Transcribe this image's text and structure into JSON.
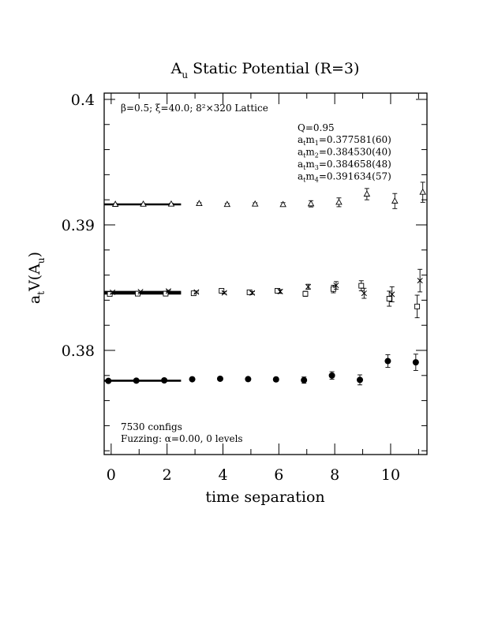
{
  "chart_data": {
    "type": "scatter",
    "title_main": "A",
    "title_sub": "u",
    "title_rest": " Static Potential (R=3)",
    "xlabel": "time separation",
    "ylabel_main": "a",
    "ylabel_sub1": "t",
    "ylabel_mid": "V(A",
    "ylabel_sub2": "u",
    "ylabel_end": ")",
    "xlim": [
      -0.25,
      11.3
    ],
    "ylim": [
      0.3717,
      0.4005
    ],
    "x_ticks": [
      0,
      2,
      4,
      6,
      8,
      10
    ],
    "x_tick_labels": [
      "0",
      "2",
      "4",
      "6",
      "8",
      "10"
    ],
    "y_ticks": [
      0.38,
      0.39,
      0.4
    ],
    "y_tick_labels": [
      "0.38",
      "0.39",
      "0.4"
    ],
    "grid": false,
    "header_annotation": "β=0.5; ξ=40.0; 8²×320 Lattice",
    "legend": {
      "position": "top-right",
      "q_line": "Q=0.95",
      "entries": [
        {
          "a": "a",
          "t": "t",
          "m": "m",
          "n": "1",
          "value": "=0.377581(60)"
        },
        {
          "a": "a",
          "t": "t",
          "m": "m",
          "n": "2",
          "value": "=0.384530(40)"
        },
        {
          "a": "a",
          "t": "t",
          "m": "m",
          "n": "3",
          "value": "=0.384658(48)"
        },
        {
          "a": "a",
          "t": "t",
          "m": "m",
          "n": "4",
          "value": "=0.391634(57)"
        }
      ]
    },
    "footer_annotation_1": "7530 configs",
    "footer_annotation_2": "Fuzzing: α=0.00, 0 levels",
    "fit_lines": [
      {
        "y": 0.377581,
        "x_start": -0.25,
        "x_end": 2.5
      },
      {
        "y": 0.38453,
        "x_start": -0.25,
        "x_end": 2.5
      },
      {
        "y": 0.384658,
        "x_start": -0.25,
        "x_end": 2.5
      },
      {
        "y": 0.391634,
        "x_start": -0.25,
        "x_end": 2.5
      }
    ],
    "series": [
      {
        "marker": "circle",
        "x": [
          -0.1,
          0.9,
          1.9,
          2.9,
          3.9,
          4.9,
          5.9,
          6.9,
          7.9,
          8.9,
          9.9,
          10.9
        ],
        "y": [
          0.37757,
          0.37759,
          0.37761,
          0.3777,
          0.37774,
          0.37771,
          0.37769,
          0.37763,
          0.378,
          0.37765,
          0.37915,
          0.37905
        ],
        "err": [
          8e-05,
          6e-05,
          6e-05,
          8e-05,
          8e-05,
          0.0001,
          0.00012,
          0.00025,
          0.0003,
          0.0004,
          0.0005,
          0.00065
        ]
      },
      {
        "marker": "square",
        "x": [
          -0.05,
          0.95,
          1.95,
          2.95,
          3.95,
          4.95,
          5.95,
          6.95,
          7.95,
          8.95,
          9.95,
          10.95
        ],
        "y": [
          0.38449,
          0.38452,
          0.38452,
          0.38455,
          0.38475,
          0.38463,
          0.38475,
          0.38451,
          0.38489,
          0.38515,
          0.38412,
          0.3835
        ],
        "err": [
          5e-05,
          4e-05,
          5e-05,
          6e-05,
          8e-05,
          0.0001,
          0.00015,
          0.0002,
          0.0003,
          0.0004,
          0.0006,
          0.0009
        ]
      },
      {
        "marker": "cross",
        "x": [
          0.05,
          1.05,
          2.05,
          3.05,
          4.05,
          5.05,
          6.05,
          7.05,
          8.05,
          9.05,
          10.05,
          11.05
        ],
        "y": [
          0.38463,
          0.38467,
          0.38473,
          0.38465,
          0.38459,
          0.38458,
          0.38469,
          0.38507,
          0.38518,
          0.38455,
          0.38447,
          0.38556
        ],
        "err": [
          5e-05,
          5e-05,
          6e-05,
          7e-05,
          8e-05,
          0.0001,
          0.00015,
          0.0002,
          0.0003,
          0.0004,
          0.0006,
          0.0009
        ]
      },
      {
        "marker": "triangle",
        "x": [
          0.15,
          1.15,
          2.15,
          3.15,
          4.15,
          5.15,
          6.15,
          7.15,
          8.15,
          9.15,
          10.15,
          11.15
        ],
        "y": [
          0.39164,
          0.39165,
          0.39166,
          0.3917,
          0.39163,
          0.39166,
          0.39162,
          0.39168,
          0.3918,
          0.39245,
          0.3919,
          0.3926
        ],
        "err": [
          5e-05,
          5e-05,
          5e-05,
          7e-05,
          8e-05,
          0.0001,
          0.00015,
          0.00025,
          0.00035,
          0.00045,
          0.0006,
          0.0008
        ]
      }
    ]
  }
}
